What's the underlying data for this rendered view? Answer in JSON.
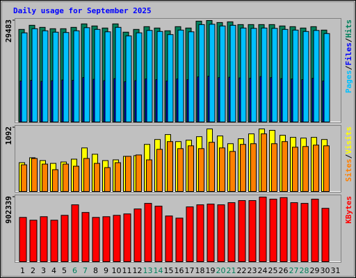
{
  "chart_data": [
    {
      "type": "bar",
      "title": "Daily usage for September 2025",
      "ylim": [
        0,
        29483
      ],
      "yticks": [
        29483
      ],
      "legend_separator": "/",
      "series": [
        {
          "name": "Hits",
          "color": "#00805c",
          "values": [
            26900,
            28100,
            27500,
            27100,
            27100,
            27500,
            28500,
            27900,
            27300,
            28500,
            26100,
            26900,
            27700,
            27300,
            26500,
            27700,
            27300,
            29300,
            29483,
            28900,
            29100,
            28300,
            28300,
            28300,
            28300,
            27900,
            27700,
            27300,
            27700,
            26700,
            null
          ]
        },
        {
          "name": "Files",
          "color": "#0000ff",
          "values": [
            11900,
            12100,
            11800,
            12000,
            12200,
            12100,
            12900,
            12400,
            12000,
            12600,
            11700,
            12000,
            12500,
            12300,
            11900,
            12500,
            12300,
            13100,
            13300,
            12900,
            13000,
            12800,
            12700,
            13200,
            12900,
            12600,
            12500,
            12300,
            12700,
            11900,
            null
          ]
        },
        {
          "name": "Pages",
          "color": "#00c0ff",
          "values": [
            25900,
            27100,
            26500,
            26100,
            26000,
            26500,
            27400,
            26900,
            26200,
            27500,
            25000,
            25900,
            26600,
            26300,
            25400,
            26700,
            26200,
            28300,
            28400,
            27900,
            28100,
            27300,
            27200,
            27300,
            27200,
            26900,
            26700,
            26300,
            26600,
            25700,
            null
          ]
        }
      ]
    },
    {
      "type": "bar",
      "ylim": [
        0,
        1092
      ],
      "yticks": [
        1092
      ],
      "legend_separator": "/",
      "series": [
        {
          "name": "Visits",
          "color": "#ffff00",
          "values": [
            492,
            576,
            528,
            480,
            504,
            552,
            744,
            636,
            528,
            540,
            600,
            612,
            804,
            888,
            972,
            852,
            876,
            936,
            1068,
            948,
            816,
            900,
            984,
            1068,
            1044,
            960,
            924,
            912,
            924,
            888,
            null
          ]
        },
        {
          "name": "Sites",
          "color": "#ff8000",
          "values": [
            456,
            564,
            468,
            372,
            468,
            432,
            564,
            480,
            408,
            492,
            600,
            624,
            540,
            720,
            852,
            732,
            780,
            732,
            840,
            744,
            684,
            804,
            816,
            984,
            816,
            852,
            756,
            768,
            792,
            780,
            null
          ]
        }
      ]
    },
    {
      "type": "bar",
      "ylim": [
        0,
        902339
      ],
      "yticks": [
        902339
      ],
      "categories": [
        "1",
        "2",
        "3",
        "4",
        "5",
        "6",
        "7",
        "8",
        "9",
        "10",
        "11",
        "12",
        "13",
        "14",
        "15",
        "16",
        "17",
        "18",
        "19",
        "20",
        "21",
        "22",
        "23",
        "24",
        "25",
        "26",
        "27",
        "28",
        "29",
        "30",
        "31"
      ],
      "weekend_color": "#00805c",
      "weekends": [
        6,
        7,
        13,
        14,
        20,
        21,
        27,
        28
      ],
      "series": [
        {
          "name": "KBytes",
          "color": "#ff0000",
          "values": [
            618000,
            579000,
            628000,
            579000,
            647000,
            794000,
            687000,
            618000,
            628000,
            647000,
            667000,
            736000,
            814000,
            775000,
            638000,
            608000,
            765000,
            794000,
            804000,
            794000,
            824000,
            853000,
            853000,
            902339,
            873000,
            895000,
            824000,
            814000,
            873000,
            745000,
            null
          ]
        }
      ]
    }
  ]
}
